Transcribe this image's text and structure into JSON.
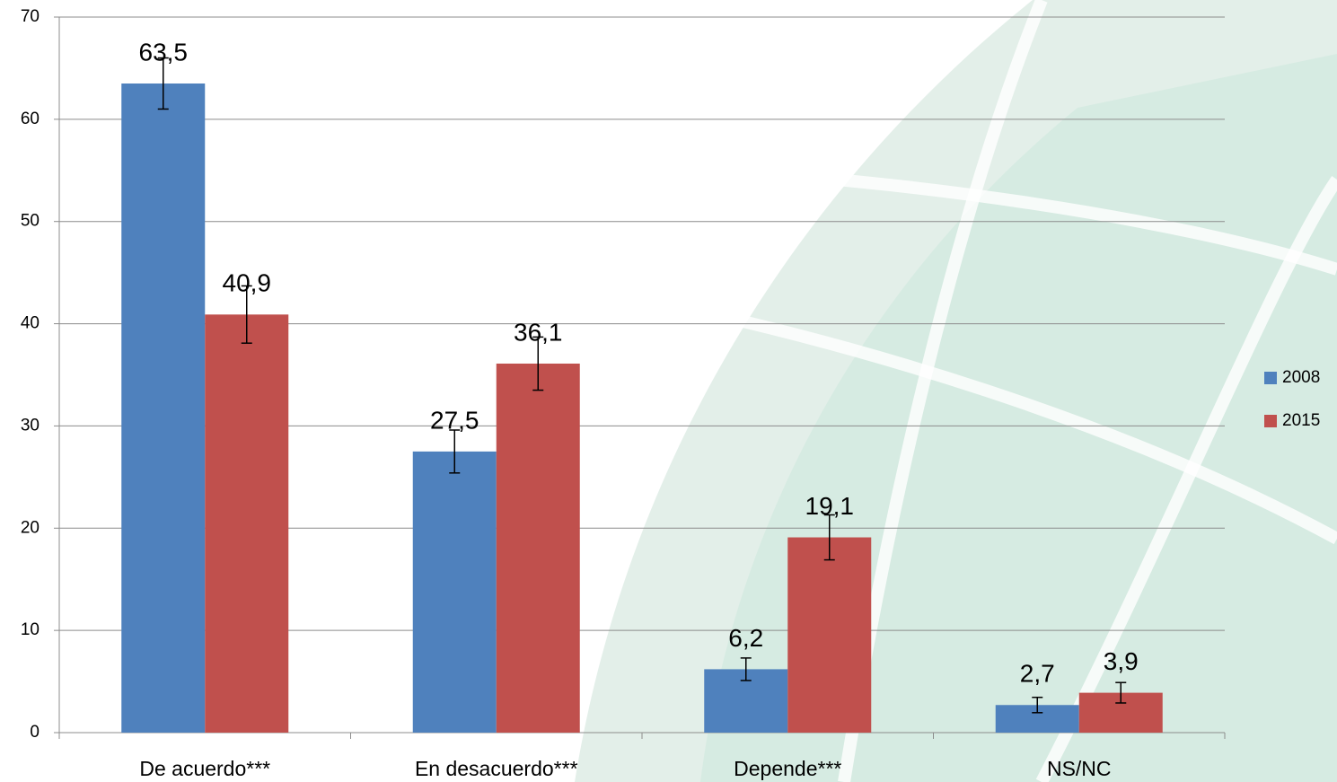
{
  "chart_data": {
    "type": "bar",
    "categories": [
      "De acuerdo***",
      "En desacuerdo***",
      "Depende***",
      "NS/NC"
    ],
    "series": [
      {
        "name": "2008",
        "color": "#4f81bd",
        "values": [
          63.5,
          27.5,
          6.2,
          2.7
        ],
        "value_labels": [
          "63,5",
          "27,5",
          "6,2",
          "2,7"
        ],
        "errors": [
          2.5,
          2.1,
          1.1,
          0.75
        ]
      },
      {
        "name": "2015",
        "color": "#c0504d",
        "values": [
          40.9,
          36.1,
          19.1,
          3.9
        ],
        "value_labels": [
          "40,9",
          "36,1",
          "19,1",
          "3,9"
        ],
        "errors": [
          2.8,
          2.6,
          2.2,
          1.0
        ]
      }
    ],
    "ylim": [
      0,
      70
    ],
    "yticks": [
      0,
      10,
      20,
      30,
      40,
      50,
      60,
      70
    ],
    "grid": true,
    "legend": "right"
  }
}
